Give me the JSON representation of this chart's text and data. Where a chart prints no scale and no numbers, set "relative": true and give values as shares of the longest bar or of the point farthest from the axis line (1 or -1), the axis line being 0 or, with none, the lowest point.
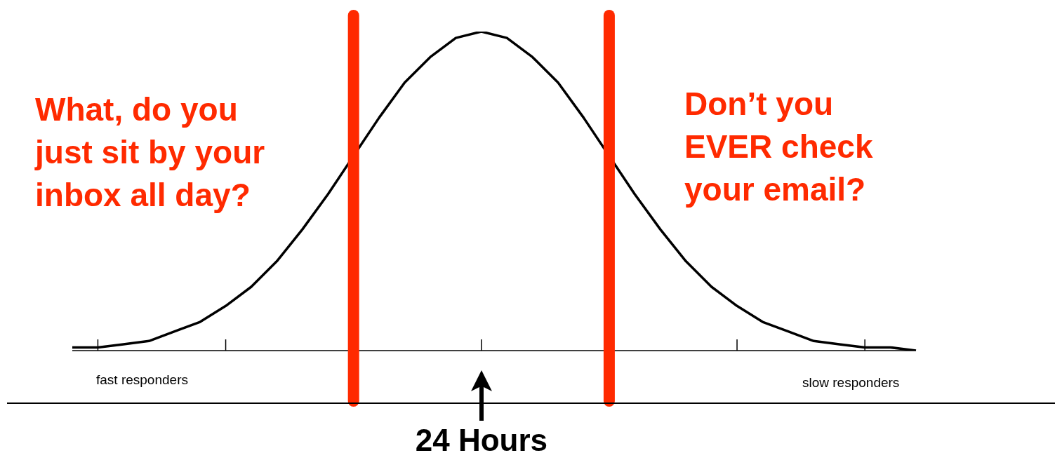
{
  "chart_data": {
    "type": "line",
    "relative": true,
    "legend": false,
    "marker": "none",
    "line_style": "solid",
    "categories": [
      null,
      null,
      null,
      null,
      null,
      null,
      null,
      null,
      null,
      null,
      null,
      null,
      null,
      null,
      null,
      null,
      null,
      null,
      null,
      null,
      null,
      null,
      null,
      null,
      null,
      null,
      null,
      null,
      null,
      null,
      null,
      null,
      null,
      null
    ],
    "series": [
      {
        "color": "#000000",
        "values": [
          0.01,
          0.01,
          0.02,
          0.03,
          0.06,
          0.09,
          0.14,
          0.2,
          0.28,
          0.38,
          0.49,
          null,
          0.73,
          0.84,
          0.92,
          0.98,
          1,
          0.98,
          0.92,
          0.84,
          0.73,
          null,
          0.49,
          0.38,
          0.28,
          0.2,
          0.14,
          0.09,
          0.06,
          0.03,
          0.02,
          0.01,
          0.01,
          0.0
        ]
      }
    ],
    "annotations": [
      "What, do you\njust sit by your\ninbox all day?",
      "Don’t you\nEVER check\nyour email?",
      "fast responders",
      "slow responders",
      "24 Hours"
    ]
  }
}
